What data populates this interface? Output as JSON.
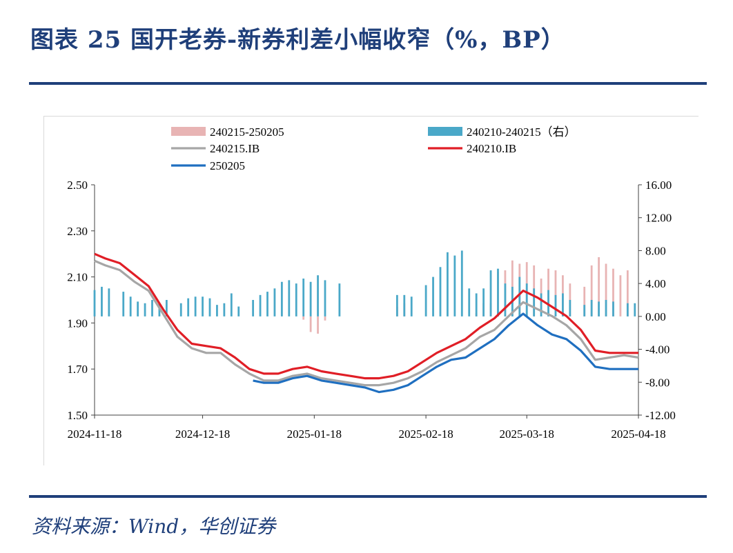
{
  "header": {
    "title": "图表 25  国开老券-新券利差小幅收窄（%，BP）"
  },
  "footer": {
    "source": "资料来源：Wind，华创证券"
  },
  "colors": {
    "title": "#1f3f7a",
    "s_240215_250205": "#e8b4b4",
    "s_240210_240215": "#4aa8c8",
    "s_240215_ib": "#a6a6a6",
    "s_240210_ib": "#e01e26",
    "s_250205": "#1f6fc0"
  },
  "chart_data": {
    "type": "line+bar",
    "title": "",
    "xlabel": "",
    "ylabel": "",
    "legend_position": "top",
    "x_ticks": [
      "2024-11-18",
      "2024-12-18",
      "2025-01-18",
      "2025-02-18",
      "2025-03-18",
      "2025-04-18"
    ],
    "x_range": [
      "2024-11-18",
      "2025-04-18"
    ],
    "y_left": {
      "range": [
        1.5,
        2.5
      ],
      "ticks": [
        "1.50",
        "1.70",
        "1.90",
        "2.10",
        "2.30",
        "2.50"
      ]
    },
    "y_right": {
      "range": [
        -12,
        16
      ],
      "ticks": [
        "-12.00",
        "-8.00",
        "-4.00",
        "0.00",
        "4.00",
        "8.00",
        "12.00",
        "16.00"
      ]
    },
    "series": [
      {
        "name": "240215-250205",
        "type": "bar",
        "axis": "right",
        "x": [
          "2024-11-18",
          "2024-11-20",
          "2024-11-22",
          "2024-11-24",
          "2024-11-26",
          "2024-11-28",
          "2024-11-30",
          "2024-12-02",
          "2024-12-04",
          "2024-12-06",
          "2024-12-08",
          "2024-12-10",
          "2024-12-12",
          "2024-12-14",
          "2024-12-16",
          "2024-12-18",
          "2024-12-20",
          "2024-12-22",
          "2024-12-24",
          "2024-12-26",
          "2024-12-28",
          "2024-12-30",
          "2025-01-01",
          "2025-01-03",
          "2025-01-05",
          "2025-01-07",
          "2025-01-09",
          "2025-01-11",
          "2025-01-13",
          "2025-01-15",
          "2025-01-17",
          "2025-01-19",
          "2025-01-21",
          "2025-01-23",
          "2025-01-25",
          "2025-01-27",
          "2025-01-29",
          "2025-01-31",
          "2025-02-02",
          "2025-02-04",
          "2025-02-06",
          "2025-02-08",
          "2025-02-10",
          "2025-02-12",
          "2025-02-14",
          "2025-02-16",
          "2025-02-18",
          "2025-02-20",
          "2025-02-22",
          "2025-02-24",
          "2025-02-26",
          "2025-02-28",
          "2025-03-02",
          "2025-03-04",
          "2025-03-06",
          "2025-03-08",
          "2025-03-10",
          "2025-03-12",
          "2025-03-14",
          "2025-03-16",
          "2025-03-18",
          "2025-03-20",
          "2025-03-22",
          "2025-03-24",
          "2025-03-26",
          "2025-03-28",
          "2025-03-30",
          "2025-04-01",
          "2025-04-03",
          "2025-04-05",
          "2025-04-07",
          "2025-04-09",
          "2025-04-11",
          "2025-04-13",
          "2025-04-15",
          "2025-04-17"
        ],
        "values": [
          null,
          null,
          null,
          null,
          null,
          null,
          null,
          null,
          null,
          null,
          null,
          null,
          null,
          null,
          null,
          null,
          null,
          null,
          null,
          null,
          null,
          null,
          null,
          null,
          null,
          null,
          null,
          null,
          null,
          -0.4,
          -1.9,
          -2.1,
          -0.5,
          null,
          null,
          null,
          null,
          null,
          null,
          null,
          null,
          null,
          1.2,
          1.6,
          null,
          null,
          null,
          null,
          null,
          null,
          null,
          null,
          null,
          0.4,
          1.6,
          1.6,
          5.4,
          5.6,
          6.8,
          6.4,
          6.6,
          6.2,
          4.6,
          5.8,
          5.6,
          5.0,
          4.0,
          null,
          3.6,
          6.2,
          7.2,
          6.4,
          5.8,
          5.0,
          5.6,
          null
        ],
        "color_key": "s_240215_250205"
      },
      {
        "name": "240210-240215（右）",
        "type": "bar",
        "axis": "right",
        "x": [
          "2024-11-18",
          "2024-11-20",
          "2024-11-22",
          "2024-11-24",
          "2024-11-26",
          "2024-11-28",
          "2024-11-30",
          "2024-12-02",
          "2024-12-04",
          "2024-12-06",
          "2024-12-08",
          "2024-12-10",
          "2024-12-12",
          "2024-12-14",
          "2024-12-16",
          "2024-12-18",
          "2024-12-20",
          "2024-12-22",
          "2024-12-24",
          "2024-12-26",
          "2024-12-28",
          "2024-12-30",
          "2025-01-01",
          "2025-01-03",
          "2025-01-05",
          "2025-01-07",
          "2025-01-09",
          "2025-01-11",
          "2025-01-13",
          "2025-01-15",
          "2025-01-17",
          "2025-01-19",
          "2025-01-21",
          "2025-01-23",
          "2025-01-25",
          "2025-01-27",
          "2025-01-29",
          "2025-01-31",
          "2025-02-02",
          "2025-02-04",
          "2025-02-06",
          "2025-02-08",
          "2025-02-10",
          "2025-02-12",
          "2025-02-14",
          "2025-02-16",
          "2025-02-18",
          "2025-02-20",
          "2025-02-22",
          "2025-02-24",
          "2025-02-26",
          "2025-02-28",
          "2025-03-02",
          "2025-03-04",
          "2025-03-06",
          "2025-03-08",
          "2025-03-10",
          "2025-03-12",
          "2025-03-14",
          "2025-03-16",
          "2025-03-18",
          "2025-03-20",
          "2025-03-22",
          "2025-03-24",
          "2025-03-26",
          "2025-03-28",
          "2025-03-30",
          "2025-04-01",
          "2025-04-03",
          "2025-04-05",
          "2025-04-07",
          "2025-04-09",
          "2025-04-11",
          "2025-04-13",
          "2025-04-15",
          "2025-04-17"
        ],
        "values": [
          3.2,
          3.6,
          3.4,
          null,
          3.0,
          2.4,
          1.8,
          1.6,
          2.0,
          1.6,
          2.0,
          null,
          1.6,
          2.2,
          2.4,
          2.4,
          2.2,
          1.4,
          1.6,
          2.8,
          1.2,
          null,
          2.0,
          2.6,
          3.0,
          3.4,
          4.2,
          4.4,
          4.0,
          4.6,
          4.2,
          5.0,
          4.4,
          null,
          4.0,
          null,
          null,
          null,
          null,
          null,
          null,
          null,
          2.6,
          2.6,
          2.4,
          null,
          3.8,
          4.8,
          6.0,
          7.8,
          7.4,
          8.0,
          3.4,
          2.8,
          3.4,
          5.6,
          5.8,
          4.0,
          3.6,
          4.8,
          4.0,
          3.4,
          2.8,
          3.2,
          2.6,
          2.8,
          2.0,
          null,
          1.4,
          2.0,
          1.8,
          2.0,
          1.8,
          null,
          1.6,
          1.6
        ],
        "color_key": "s_240210_240215"
      },
      {
        "name": "240215.IB",
        "type": "line",
        "axis": "left",
        "x": [
          "2024-11-18",
          "2024-11-21",
          "2024-11-25",
          "2024-11-29",
          "2024-12-03",
          "2024-12-07",
          "2024-12-11",
          "2024-12-15",
          "2024-12-19",
          "2024-12-23",
          "2024-12-27",
          "2024-12-31",
          "2025-01-04",
          "2025-01-08",
          "2025-01-12",
          "2025-01-16",
          "2025-01-20",
          "2025-01-24",
          "2025-01-28",
          "2025-02-01",
          "2025-02-05",
          "2025-02-09",
          "2025-02-13",
          "2025-02-17",
          "2025-02-21",
          "2025-02-25",
          "2025-03-01",
          "2025-03-05",
          "2025-03-09",
          "2025-03-13",
          "2025-03-17",
          "2025-03-21",
          "2025-03-25",
          "2025-03-29",
          "2025-04-02",
          "2025-04-06",
          "2025-04-10",
          "2025-04-14",
          "2025-04-18"
        ],
        "values": [
          2.17,
          2.15,
          2.13,
          2.08,
          2.04,
          1.94,
          1.84,
          1.79,
          1.77,
          1.77,
          1.72,
          1.68,
          1.65,
          1.65,
          1.67,
          1.68,
          1.66,
          1.65,
          1.64,
          1.63,
          1.63,
          1.64,
          1.66,
          1.69,
          1.73,
          1.76,
          1.79,
          1.84,
          1.87,
          1.93,
          1.99,
          1.96,
          1.93,
          1.89,
          1.83,
          1.74,
          1.75,
          1.76,
          1.75
        ],
        "color_key": "s_240215_ib"
      },
      {
        "name": "240210.IB",
        "type": "line",
        "axis": "left",
        "x": [
          "2024-11-18",
          "2024-11-21",
          "2024-11-25",
          "2024-11-29",
          "2024-12-03",
          "2024-12-07",
          "2024-12-11",
          "2024-12-15",
          "2024-12-19",
          "2024-12-23",
          "2024-12-27",
          "2024-12-31",
          "2025-01-04",
          "2025-01-08",
          "2025-01-12",
          "2025-01-16",
          "2025-01-20",
          "2025-01-24",
          "2025-01-28",
          "2025-02-01",
          "2025-02-05",
          "2025-02-09",
          "2025-02-13",
          "2025-02-17",
          "2025-02-21",
          "2025-02-25",
          "2025-03-01",
          "2025-03-05",
          "2025-03-09",
          "2025-03-13",
          "2025-03-17",
          "2025-03-21",
          "2025-03-25",
          "2025-03-29",
          "2025-04-02",
          "2025-04-06",
          "2025-04-10",
          "2025-04-14",
          "2025-04-18"
        ],
        "values": [
          2.2,
          2.18,
          2.16,
          2.11,
          2.06,
          1.96,
          1.87,
          1.81,
          1.8,
          1.79,
          1.75,
          1.7,
          1.68,
          1.68,
          1.7,
          1.71,
          1.69,
          1.68,
          1.67,
          1.66,
          1.66,
          1.67,
          1.69,
          1.73,
          1.77,
          1.8,
          1.83,
          1.88,
          1.92,
          1.98,
          2.04,
          2.01,
          1.97,
          1.93,
          1.87,
          1.78,
          1.77,
          1.77,
          1.77
        ],
        "color_key": "s_240210_ib"
      },
      {
        "name": "250205",
        "type": "line",
        "axis": "left",
        "x": [
          "2025-01-01",
          "2025-01-04",
          "2025-01-08",
          "2025-01-12",
          "2025-01-16",
          "2025-01-20",
          "2025-01-24",
          "2025-01-28",
          "2025-02-01",
          "2025-02-05",
          "2025-02-09",
          "2025-02-13",
          "2025-02-17",
          "2025-02-21",
          "2025-02-25",
          "2025-03-01",
          "2025-03-05",
          "2025-03-09",
          "2025-03-13",
          "2025-03-17",
          "2025-03-21",
          "2025-03-25",
          "2025-03-29",
          "2025-04-02",
          "2025-04-06",
          "2025-04-10",
          "2025-04-14",
          "2025-04-18"
        ],
        "values": [
          1.65,
          1.64,
          1.64,
          1.66,
          1.67,
          1.65,
          1.64,
          1.63,
          1.62,
          1.6,
          1.61,
          1.63,
          1.67,
          1.71,
          1.74,
          1.75,
          1.79,
          1.83,
          1.89,
          1.94,
          1.89,
          1.85,
          1.83,
          1.78,
          1.71,
          1.7,
          1.7,
          1.7
        ],
        "color_key": "s_250205"
      }
    ]
  }
}
